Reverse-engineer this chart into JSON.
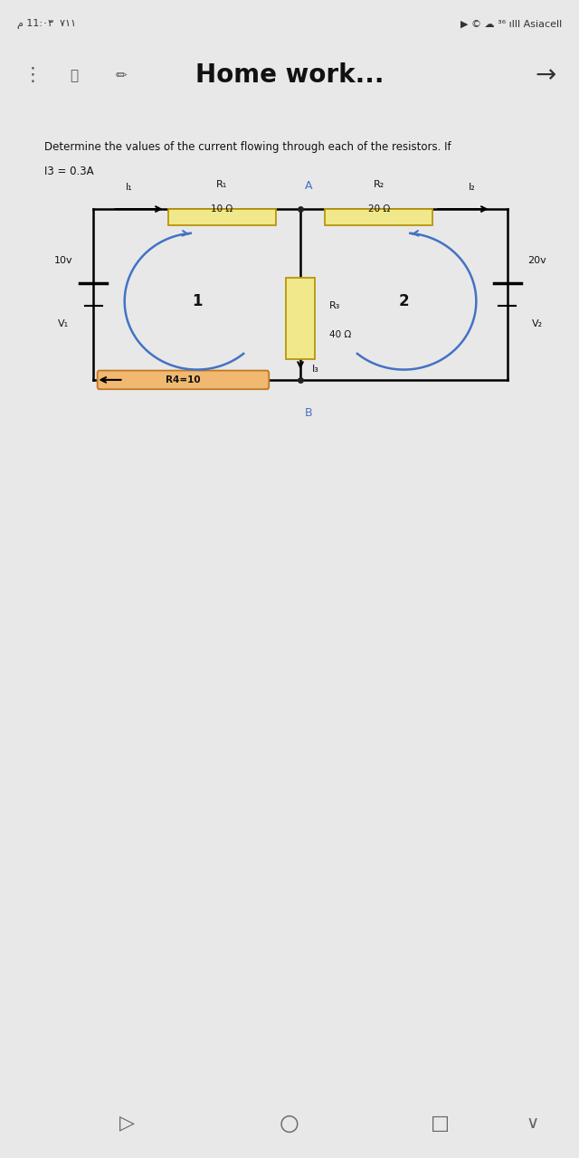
{
  "bg_color": "#e8e8e8",
  "page_bg": "#ffffff",
  "toolbar_title": "Home work...",
  "problem_text": "Determine the values of the current flowing through each of the resistors. If",
  "condition_text": "I3 = 0.3A",
  "circuit": {
    "R1_label": "R₁",
    "R1_val": "10 Ω",
    "R2_label": "R₂",
    "R2_val": "20 Ω",
    "R3_label": "R₃",
    "R3_val": "40 Ω",
    "R4_label": "R4=10",
    "V1_label": "10v",
    "V1_sub": "V₁",
    "V2_label": "20v",
    "V2_sub": "V₂",
    "node_A": "A",
    "node_B": "B",
    "I1_label": "I₁",
    "I2_label": "I₂",
    "I3_label": "I₃",
    "loop1": "1",
    "loop2": "2",
    "resistor_fill": "#f0e88a",
    "resistor_stroke": "#b8960a",
    "r4_fill": "#f0b870",
    "r4_stroke": "#c07820",
    "loop_color": "#4472c4",
    "wire_color": "#000000"
  }
}
